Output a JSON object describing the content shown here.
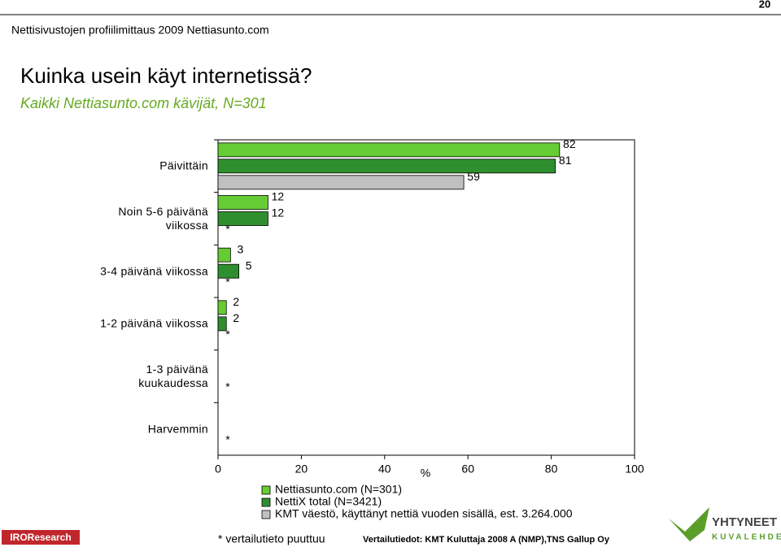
{
  "page_number": "20",
  "header": "Nettisivustojen profiilimittaus 2009 Nettiasunto.com",
  "footer_note": "* vertailutieto puuttuu",
  "footer_source": "Vertailutiedot: KMT Kuluttaja 2008 A (NMP),TNS Gallup Oy",
  "logo_left": "IROResearch",
  "logo_right": [
    "YHTYNEET",
    "KUVALEHDET"
  ],
  "chart_data": {
    "type": "hbar",
    "title": "Kuinka usein käyt internetissä?",
    "subtitle": "Kaikki Nettiasunto.com kävijät, N=301",
    "x_label": "%",
    "categories": [
      "Päivittäin",
      "Noin 5-6 päivänä viikossa",
      "3-4 päivänä viikossa",
      "1-2 päivänä viikossa",
      "1-3 päivänä kuukaudessa",
      "Harvemmin"
    ],
    "series": [
      {
        "name": "Nettiasunto.com (N=301)",
        "color": "#66cc33",
        "values": [
          82,
          12,
          3,
          2,
          null,
          null
        ],
        "value_labels": [
          "82",
          "12",
          "3",
          "2",
          null,
          null
        ]
      },
      {
        "name": "NettiX total (N=3421)",
        "color": "#2f8f2f",
        "values": [
          81,
          12,
          5,
          2,
          null,
          null
        ],
        "value_labels": [
          "81",
          "12",
          "5",
          "2",
          null,
          null
        ]
      },
      {
        "name": "KMT väestö, käyttänyt nettiä vuoden sisällä, est. 3.264.000",
        "color": "#c0c0c0",
        "values": [
          59,
          null,
          null,
          null,
          null,
          null
        ],
        "value_labels": [
          "59",
          "*",
          "*",
          "*",
          "*",
          "*"
        ]
      }
    ],
    "xlim": [
      0,
      100
    ],
    "xticks": [
      0,
      20,
      40,
      60,
      80,
      100
    ]
  }
}
